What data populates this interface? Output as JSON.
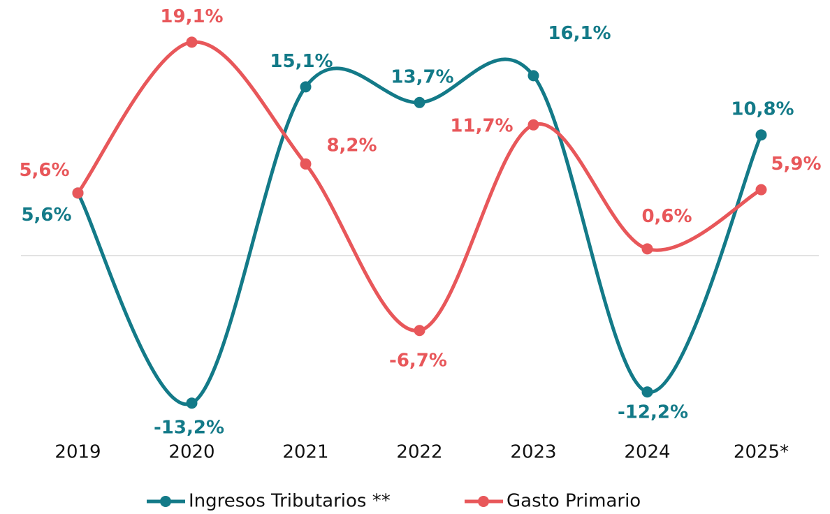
{
  "chart_data": {
    "type": "line",
    "categories": [
      "2019",
      "2020",
      "2021",
      "2022",
      "2023",
      "2024",
      "2025*"
    ],
    "series": [
      {
        "name": "Ingresos Tributarios **",
        "color": "#137a88",
        "values": [
          5.6,
          -13.2,
          15.1,
          13.7,
          16.1,
          -12.2,
          10.8
        ],
        "value_labels": [
          "5,6%",
          "-13,2%",
          "15,1%",
          "13,7%",
          "16,1%",
          "-12,2%",
          "10,8%"
        ]
      },
      {
        "name": "Gasto Primario",
        "color": "#e8575a",
        "values": [
          5.6,
          19.1,
          8.2,
          -6.7,
          11.7,
          0.6,
          5.9
        ],
        "value_labels": [
          "5,6%",
          "19,1%",
          "8,2%",
          "-6,7%",
          "11,7%",
          "0,6%",
          "5,9%"
        ]
      }
    ],
    "ylim": [
      -15,
      21
    ],
    "legend": "bottom"
  }
}
